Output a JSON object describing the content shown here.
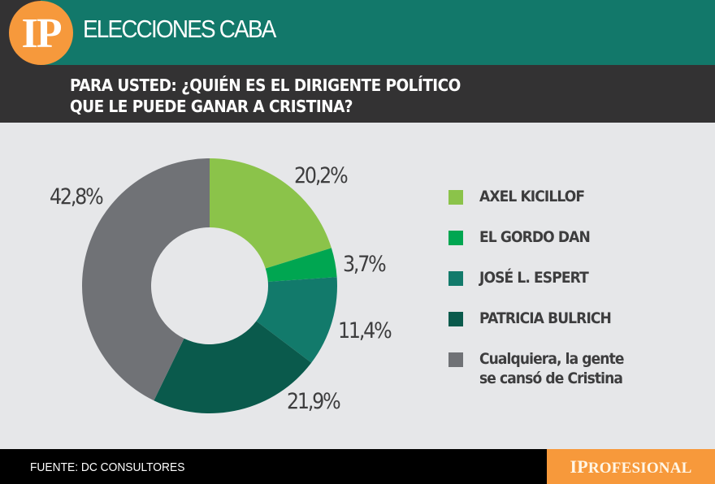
{
  "header": {
    "logo_text": "IP",
    "section_title": "ELECCIONES CABA",
    "question_line1": "PARA USTED: ¿QUIÉN ES EL DIRIGENTE POLÍTICO",
    "question_line2": "QUE LE PUEDE GANAR A CRISTINA?",
    "colors": {
      "band_green": "#12786a",
      "band_dark": "#333233",
      "logo_orange": "#f6993c"
    }
  },
  "legend": {
    "items": [
      {
        "label": "AXEL KICILLOF",
        "color": "#8bc34a"
      },
      {
        "label": "EL GORDO DAN",
        "color": "#00a651"
      },
      {
        "label": "JOSÉ L. ESPERT",
        "color": "#127a6b"
      },
      {
        "label": "PATRICIA BULRICH",
        "color": "#0a5a4c"
      },
      {
        "label": "Cualquiera, la gente",
        "label2": "se cansó de Cristina",
        "color": "#707276"
      }
    ]
  },
  "labels": [
    "20,2%",
    "3,7%",
    "11,4%",
    "21,9%",
    "42,8%"
  ],
  "footer": {
    "source": "FUENTE: DC CONSULTORES",
    "brand_first": "I",
    "brand_p": "P",
    "brand_rest": "ROFESIONAL"
  },
  "chart_data": {
    "type": "pie",
    "variant": "donut",
    "title": "PARA USTED: ¿QUIÉN ES EL DIRIGENTE POLÍTICO QUE LE PUEDE GANAR A CRISTINA?",
    "subtitle": "ELECCIONES CABA",
    "categories": [
      "AXEL KICILLOF",
      "EL GORDO DAN",
      "JOSÉ L. ESPERT",
      "PATRICIA BULRICH",
      "Cualquiera, la gente se cansó de Cristina"
    ],
    "values": [
      20.2,
      3.7,
      11.4,
      21.9,
      42.8
    ],
    "colors": [
      "#8bc34a",
      "#00a651",
      "#127a6b",
      "#0a5a4c",
      "#707276"
    ],
    "value_labels": [
      "20,2%",
      "3,7%",
      "11,4%",
      "21,9%",
      "42,8%"
    ],
    "unit": "%",
    "start_angle": "top, clockwise",
    "legend_position": "right",
    "source": "FUENTE: DC CONSULTORES"
  }
}
